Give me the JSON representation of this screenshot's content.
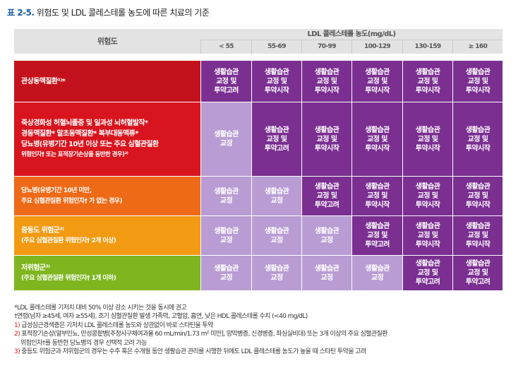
{
  "title": {
    "label": "표 2-5.",
    "text": "위험도 및 LDL 콜레스테롤 농도에 따른 치료의 기준"
  },
  "header": {
    "risk": "위험도",
    "ldl": "LDL 콜레스테롤 농도(mg/dL)",
    "columns": [
      "< 55",
      "55-69",
      "70-99",
      "100-129",
      "130-159",
      "≥ 160"
    ]
  },
  "terms": {
    "lifestyle": "생활습관 교정",
    "treat": "생활습관 교정 및 투약시작",
    "consider": "생활습관 교정 및 투약고려"
  },
  "rows": [
    {
      "color": "#c4121c",
      "lines": [
        "관상동맥질환¹⁾*"
      ],
      "cells": [
        "생활습관 교정 및 투약고려",
        "생활습관 교정 및 투약시작",
        "생활습관 교정 및 투약시작",
        "생활습관 교정 및 투약시작",
        "생활습관 교정 및 투약시작",
        "생활습관 교정 및 투약시작"
      ]
    },
    {
      "color": "#d8141e",
      "lines": [
        "죽상경화성 허혈뇌졸중 및 일과성 뇌허혈발작*",
        "경동맥질환*  말초동맥질환*  복부대동맥류*",
        "당뇨병(유병기간 10년 이상 또는 주요 심혈관질환",
        "위험인자† 또는 표적장기손상을 동반한 경우)²⁾"
      ],
      "cells": [
        "생활습관 교정",
        "생활습관 교정 및 투약고려",
        "생활습관 교정 및 투약시작",
        "생활습관 교정 및 투약시작",
        "생활습관 교정 및 투약시작",
        "생활습관 교정 및 투약시작"
      ]
    },
    {
      "color": "#ee6a16",
      "lines": [
        "당뇨병(유병기간 10년 미만,",
        "주요 심혈관질환 위험인자† 가 없는 경우)"
      ],
      "cells": [
        "생활습관 교정",
        "생활습관 교정",
        "생활습관 교정 및 투약고려",
        "생활습관 교정 및 투약시작",
        "생활습관 교정 및 투약시작",
        "생활습관 교정 및 투약시작"
      ]
    },
    {
      "color": "#f29a12",
      "lines": [
        "중등도 위험군³⁾",
        "(주요 심혈관질환 위험인자† 2개 이상)"
      ],
      "cells": [
        "생활습관 교정",
        "생활습관 교정",
        "생활습관 교정",
        "생활습관 교정 및 투약고려",
        "생활습관 교정 및 투약시작",
        "생활습관 교정 및 투약시작"
      ]
    },
    {
      "color": "#7fb51f",
      "lines": [
        "저위험군³⁾",
        "(주요 심혈관질환 위험인자† 1개 이하)"
      ],
      "cells": [
        "생활습관 교정",
        "생활습관 교정",
        "생활습관 교정",
        "생활습관 교정",
        "생활습관 교정 및 투약고려",
        "생활습관 교정 및 투약고려"
      ]
    }
  ],
  "footnotes": [
    "*LDL 콜레스테롤 기저치 대비 50% 이상 감소 시키는 것을 동시에 권고",
    "†연령(남자 ≥45세, 여자 ≥55세), 조기 심혈관질환 발생 가족력, 고혈압, 흡연, 낮은 HDL 콜레스테롤 수치 (<40 mg/dL)",
    "1) 급성심근경색증은 기저치 LDL 콜레스테롤 농도와 상관없이 바로 스타틴을 투약",
    "2) 표적장기손상(알부민뇨, 만성콩팥병[추정사구체여과율 60 mL/min/1.73 m² 미만], 망막병증, 신경병증, 좌심실비대) 또는 3개 이상의 주요 심혈관질환",
    "    위험인자†를 동반한 당뇨병의 경우 선택적 고려 가능",
    "3) 중등도 위험군과 저위험군의 경우는 수주 혹은 수개월 동안 생활습관 관리를 시행한 뒤에도 LDL 콜레스테롤 농도가 높을 때 스타틴 투약을 고려"
  ]
}
